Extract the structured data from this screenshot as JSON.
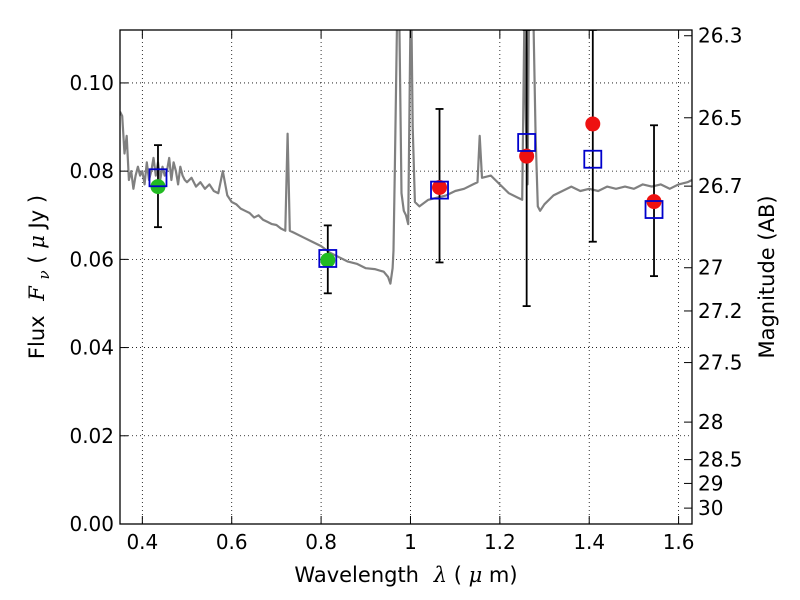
{
  "chart_data": {
    "type": "scatter",
    "title": "",
    "xlabel": "Wavelength",
    "xlabel_math": "λ",
    "xlabel_unit_open": " (",
    "xlabel_unit_mu": "μ",
    "xlabel_unit_close": "m)",
    "ylabel": "Flux",
    "ylabel_math_base": "F",
    "ylabel_math_sub": "ν",
    "ylabel_unit_open": " ( ",
    "ylabel_unit_mu": "μ",
    "ylabel_unit_close": "Jy )",
    "y2label": "Magnitude (AB)",
    "xlim": [
      0.35,
      1.63
    ],
    "ylim": [
      0.0,
      0.112
    ],
    "grid": true,
    "grid_style": "dotted",
    "x_ticks": [
      0.4,
      0.6,
      0.8,
      1.0,
      1.2,
      1.4,
      1.6
    ],
    "x_tick_labels": [
      "0.4",
      "0.6",
      "0.8",
      "1",
      "1.2",
      "1.4",
      "1.6"
    ],
    "y_ticks": [
      0.0,
      0.02,
      0.04,
      0.06,
      0.08,
      0.1
    ],
    "y_tick_labels": [
      "0.00",
      "0.02",
      "0.04",
      "0.06",
      "0.08",
      "0.10"
    ],
    "y2_ticks": [
      {
        "label": "26.3",
        "flux": 0.1107
      },
      {
        "label": "26.5",
        "flux": 0.0921
      },
      {
        "label": "26.7",
        "flux": 0.0766
      },
      {
        "label": "27",
        "flux": 0.0581
      },
      {
        "label": "27.2",
        "flux": 0.0483
      },
      {
        "label": "27.5",
        "flux": 0.0366
      },
      {
        "label": "28",
        "flux": 0.0231
      },
      {
        "label": "28.5",
        "flux": 0.0146
      },
      {
        "label": "29",
        "flux": 0.0092
      },
      {
        "label": "30",
        "flux": 0.0036
      }
    ],
    "series": [
      {
        "role": "sed-model",
        "kind": "line",
        "color": "#808080",
        "x": [
          0.35,
          0.355,
          0.36,
          0.365,
          0.37,
          0.375,
          0.38,
          0.385,
          0.39,
          0.395,
          0.4,
          0.405,
          0.41,
          0.415,
          0.42,
          0.425,
          0.43,
          0.435,
          0.44,
          0.445,
          0.45,
          0.455,
          0.46,
          0.465,
          0.47,
          0.475,
          0.48,
          0.485,
          0.49,
          0.495,
          0.5,
          0.51,
          0.52,
          0.53,
          0.54,
          0.55,
          0.56,
          0.57,
          0.58,
          0.59,
          0.6,
          0.61,
          0.62,
          0.63,
          0.64,
          0.65,
          0.66,
          0.67,
          0.68,
          0.69,
          0.7,
          0.71,
          0.72,
          0.725,
          0.73,
          0.74,
          0.76,
          0.78,
          0.8,
          0.82,
          0.84,
          0.86,
          0.88,
          0.9,
          0.92,
          0.94,
          0.95,
          0.955,
          0.96,
          0.962,
          0.965,
          0.97,
          0.975,
          0.98,
          0.985,
          0.99,
          0.995,
          1.0,
          1.002,
          1.005,
          1.01,
          1.02,
          1.04,
          1.06,
          1.08,
          1.1,
          1.12,
          1.14,
          1.15,
          1.155,
          1.16,
          1.18,
          1.2,
          1.22,
          1.24,
          1.25,
          1.255,
          1.258,
          1.262,
          1.265,
          1.27,
          1.275,
          1.28,
          1.285,
          1.29,
          1.3,
          1.32,
          1.34,
          1.36,
          1.38,
          1.4,
          1.42,
          1.44,
          1.46,
          1.48,
          1.5,
          1.52,
          1.54,
          1.56,
          1.58,
          1.6,
          1.62,
          1.63
        ],
        "y": [
          0.0935,
          0.0925,
          0.084,
          0.088,
          0.078,
          0.08,
          0.076,
          0.079,
          0.081,
          0.079,
          0.08,
          0.077,
          0.082,
          0.078,
          0.08,
          0.083,
          0.079,
          0.082,
          0.078,
          0.081,
          0.079,
          0.08,
          0.083,
          0.078,
          0.082,
          0.08,
          0.077,
          0.081,
          0.079,
          0.078,
          0.0775,
          0.0785,
          0.0765,
          0.0775,
          0.076,
          0.077,
          0.0755,
          0.075,
          0.08,
          0.0745,
          0.073,
          0.0725,
          0.0715,
          0.071,
          0.0705,
          0.0695,
          0.07,
          0.069,
          0.0685,
          0.068,
          0.0678,
          0.067,
          0.0665,
          0.0885,
          0.0665,
          0.066,
          0.065,
          0.064,
          0.063,
          0.0615,
          0.0605,
          0.0595,
          0.059,
          0.058,
          0.0578,
          0.0572,
          0.056,
          0.0545,
          0.058,
          0.062,
          0.08,
          0.115,
          0.115,
          0.075,
          0.071,
          0.07,
          0.068,
          0.115,
          0.115,
          0.09,
          0.073,
          0.072,
          0.0735,
          0.074,
          0.0745,
          0.0755,
          0.076,
          0.077,
          0.0775,
          0.088,
          0.0785,
          0.079,
          0.077,
          0.075,
          0.074,
          0.0735,
          0.115,
          0.092,
          0.077,
          0.115,
          0.115,
          0.115,
          0.088,
          0.072,
          0.071,
          0.0725,
          0.0745,
          0.0755,
          0.0765,
          0.0755,
          0.076,
          0.0755,
          0.0765,
          0.076,
          0.0765,
          0.076,
          0.077,
          0.0765,
          0.077,
          0.076,
          0.077,
          0.0775,
          0.078
        ]
      },
      {
        "role": "model-photometry",
        "kind": "marker",
        "marker": "open-square",
        "color": "#0000cc",
        "x": [
          0.435,
          0.815,
          1.065,
          1.26,
          1.408,
          1.545
        ],
        "y": [
          0.0785,
          0.0602,
          0.0757,
          0.0865,
          0.0827,
          0.0713
        ]
      },
      {
        "role": "observed-photometry",
        "kind": "marker-errorbar",
        "marker": "filled-circle",
        "colors": [
          "#22bb22",
          "#22bb22",
          "#ee1111",
          "#ee1111",
          "#ee1111",
          "#ee1111"
        ],
        "x": [
          0.435,
          0.815,
          1.065,
          1.26,
          1.408,
          1.545
        ],
        "y": [
          0.0765,
          0.0598,
          0.0763,
          0.0834,
          0.0907,
          0.0731
        ],
        "yerr_low": [
          0.0673,
          0.0523,
          0.0593,
          0.0494,
          0.064,
          0.0562
        ],
        "yerr_high": [
          0.0859,
          0.0677,
          0.0941,
          0.112,
          0.112,
          0.0904
        ]
      }
    ]
  }
}
